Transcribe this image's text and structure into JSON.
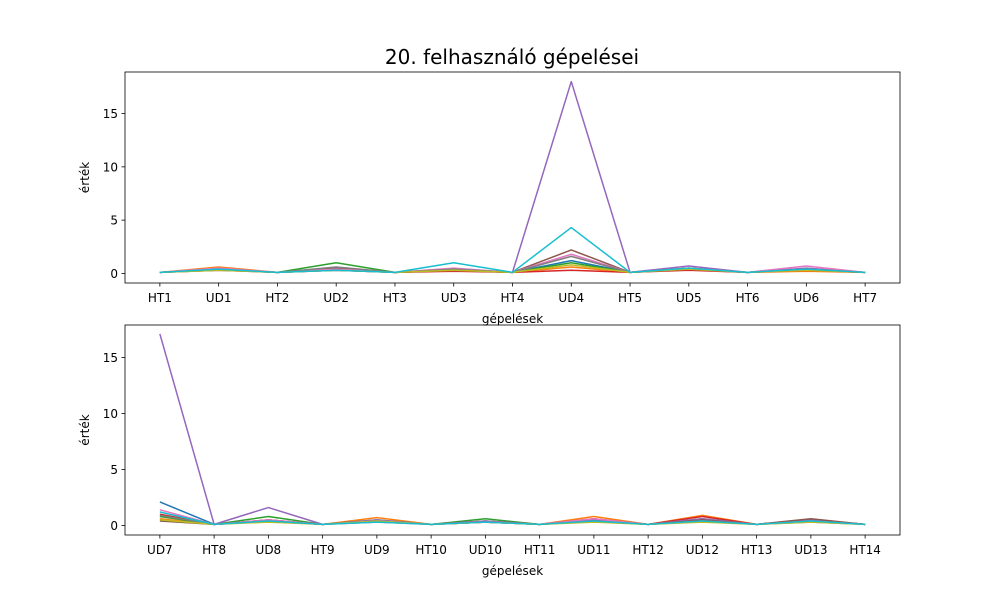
{
  "title": "20. felhasználó gépelései",
  "chart_data": [
    {
      "type": "line",
      "xlabel": "gépelések",
      "ylabel": "érték",
      "ylim": [
        -0.9,
        18.9
      ],
      "yticks": [
        0,
        5,
        10,
        15
      ],
      "grid": false,
      "categories": [
        "HT1",
        "UD1",
        "HT2",
        "UD2",
        "HT3",
        "UD3",
        "HT4",
        "UD4",
        "HT5",
        "UD5",
        "HT6",
        "UD6",
        "HT7"
      ],
      "series": [
        {
          "color": "#1f77b4",
          "values": [
            0.1,
            0.4,
            0.1,
            0.3,
            0.1,
            0.3,
            0.1,
            1.2,
            0.1,
            0.4,
            0.1,
            0.3,
            0.1
          ]
        },
        {
          "color": "#ff7f0e",
          "values": [
            0.1,
            0.6,
            0.1,
            0.4,
            0.1,
            0.4,
            0.1,
            0.6,
            0.1,
            0.5,
            0.1,
            0.2,
            0.1
          ]
        },
        {
          "color": "#2ca02c",
          "values": [
            0.1,
            0.4,
            0.1,
            1.0,
            0.1,
            0.3,
            0.1,
            1.0,
            0.1,
            0.4,
            0.1,
            0.4,
            0.1
          ]
        },
        {
          "color": "#d62728",
          "values": [
            0.1,
            0.3,
            0.1,
            0.3,
            0.1,
            0.2,
            0.1,
            0.3,
            0.1,
            0.3,
            0.1,
            0.3,
            0.1
          ]
        },
        {
          "color": "#9467bd",
          "values": [
            0.1,
            0.4,
            0.1,
            0.4,
            0.1,
            0.4,
            0.1,
            18.0,
            0.1,
            0.7,
            0.1,
            0.5,
            0.1
          ]
        },
        {
          "color": "#8c564b",
          "values": [
            0.1,
            0.4,
            0.1,
            0.5,
            0.1,
            0.3,
            0.1,
            2.2,
            0.1,
            0.5,
            0.1,
            0.4,
            0.1
          ]
        },
        {
          "color": "#e377c2",
          "values": [
            0.1,
            0.5,
            0.1,
            0.4,
            0.1,
            0.5,
            0.1,
            1.8,
            0.1,
            0.5,
            0.1,
            0.7,
            0.1
          ]
        },
        {
          "color": "#7f7f7f",
          "values": [
            0.1,
            0.3,
            0.1,
            0.6,
            0.1,
            0.4,
            0.1,
            1.6,
            0.1,
            0.4,
            0.1,
            0.4,
            0.1
          ]
        },
        {
          "color": "#bcbd22",
          "values": [
            0.1,
            0.3,
            0.1,
            0.3,
            0.1,
            0.3,
            0.1,
            0.8,
            0.1,
            0.4,
            0.1,
            0.3,
            0.1
          ]
        },
        {
          "color": "#17becf",
          "values": [
            0.1,
            0.4,
            0.1,
            0.3,
            0.1,
            1.0,
            0.1,
            4.3,
            0.1,
            0.5,
            0.1,
            0.4,
            0.1
          ]
        }
      ]
    },
    {
      "type": "line",
      "xlabel": "gépelések",
      "ylabel": "érték",
      "ylim": [
        -0.85,
        17.9
      ],
      "yticks": [
        0,
        5,
        10,
        15
      ],
      "grid": false,
      "categories": [
        "UD7",
        "HT8",
        "UD8",
        "HT9",
        "UD9",
        "HT10",
        "UD10",
        "HT11",
        "UD11",
        "HT12",
        "UD12",
        "HT13",
        "UD13",
        "HT14"
      ],
      "series": [
        {
          "color": "#1f77b4",
          "values": [
            2.1,
            0.1,
            0.5,
            0.1,
            0.4,
            0.1,
            0.3,
            0.1,
            0.4,
            0.1,
            0.5,
            0.1,
            0.4,
            0.1
          ]
        },
        {
          "color": "#ff7f0e",
          "values": [
            0.6,
            0.1,
            0.4,
            0.1,
            0.7,
            0.1,
            0.3,
            0.1,
            0.8,
            0.1,
            0.9,
            0.1,
            0.5,
            0.1
          ]
        },
        {
          "color": "#2ca02c",
          "values": [
            0.8,
            0.1,
            0.8,
            0.1,
            0.5,
            0.1,
            0.6,
            0.1,
            0.5,
            0.1,
            0.6,
            0.1,
            0.5,
            0.1
          ]
        },
        {
          "color": "#d62728",
          "values": [
            1.0,
            0.1,
            0.5,
            0.1,
            0.4,
            0.1,
            0.4,
            0.1,
            0.6,
            0.1,
            0.8,
            0.1,
            0.5,
            0.1
          ]
        },
        {
          "color": "#9467bd",
          "values": [
            17.1,
            0.1,
            1.6,
            0.1,
            0.5,
            0.1,
            0.4,
            0.1,
            0.5,
            0.1,
            0.6,
            0.1,
            0.5,
            0.1
          ]
        },
        {
          "color": "#8c564b",
          "values": [
            0.4,
            0.1,
            0.4,
            0.1,
            0.4,
            0.1,
            0.3,
            0.1,
            0.4,
            0.1,
            0.5,
            0.1,
            0.6,
            0.1
          ]
        },
        {
          "color": "#e377c2",
          "values": [
            1.4,
            0.1,
            0.5,
            0.1,
            0.4,
            0.1,
            0.3,
            0.1,
            0.6,
            0.1,
            0.4,
            0.1,
            0.4,
            0.1
          ]
        },
        {
          "color": "#7f7f7f",
          "values": [
            0.9,
            0.1,
            0.4,
            0.1,
            0.3,
            0.1,
            0.3,
            0.1,
            0.4,
            0.1,
            0.4,
            0.1,
            0.3,
            0.1
          ]
        },
        {
          "color": "#bcbd22",
          "values": [
            0.5,
            0.1,
            0.3,
            0.1,
            0.4,
            0.1,
            0.3,
            0.1,
            0.3,
            0.1,
            0.3,
            0.1,
            0.3,
            0.1
          ]
        },
        {
          "color": "#17becf",
          "values": [
            1.2,
            0.1,
            0.4,
            0.1,
            0.3,
            0.1,
            0.3,
            0.1,
            0.4,
            0.1,
            0.4,
            0.1,
            0.4,
            0.1
          ]
        }
      ]
    }
  ]
}
